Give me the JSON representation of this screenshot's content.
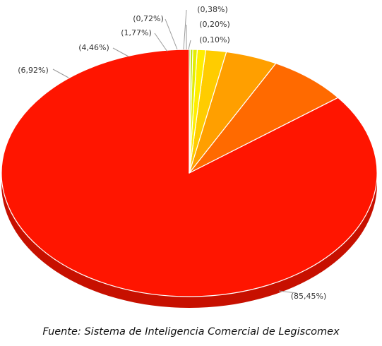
{
  "chart_data": {
    "type": "pie",
    "style": "3d",
    "slices": [
      {
        "label": "(85,45%)",
        "value": 85.45,
        "color": "#ff1500"
      },
      {
        "label": "(6,92%)",
        "value": 6.92,
        "color": "#ff6a00"
      },
      {
        "label": "(4,46%)",
        "value": 4.46,
        "color": "#ff9f00"
      },
      {
        "label": "(1,77%)",
        "value": 1.77,
        "color": "#ffcc00"
      },
      {
        "label": "(0,72%)",
        "value": 0.72,
        "color": "#ffee00"
      },
      {
        "label": "(0,38%)",
        "value": 0.38,
        "color": "#e5ee00"
      },
      {
        "label": "(0,20%)",
        "value": 0.2,
        "color": "#b7e000"
      },
      {
        "label": "(0,10%)",
        "value": 0.1,
        "color": "#7fcf00"
      }
    ],
    "start": "12 o'clock",
    "direction": "counterclockwise",
    "legend": "none"
  },
  "source_note": "Fuente: Sistema de Inteligencia Comercial de Legiscomex"
}
